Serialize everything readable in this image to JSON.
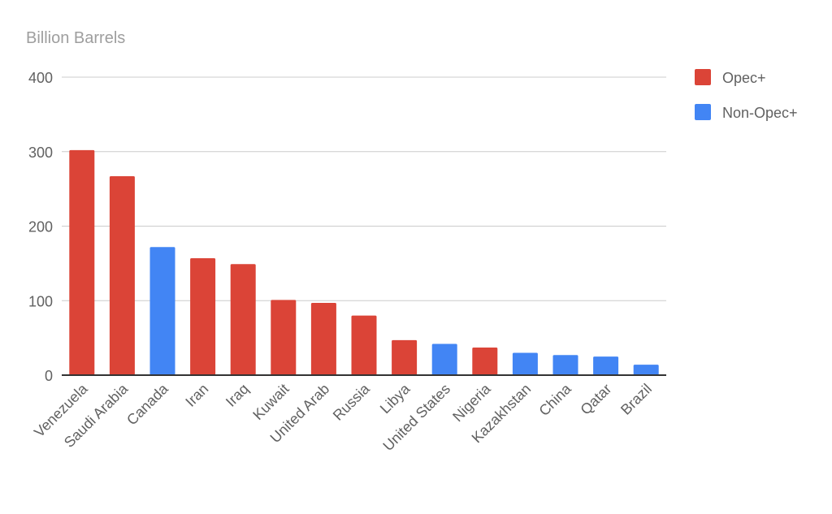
{
  "chart_data": {
    "type": "bar",
    "ylabel": "Billion Barrels",
    "ylim": [
      0,
      400
    ],
    "yticks": [
      0,
      100,
      200,
      300,
      400
    ],
    "grid": true,
    "legend_position": "right",
    "categories": [
      "Venezuela",
      "Saudi Arabia",
      "Canada",
      "Iran",
      "Iraq",
      "Kuwait",
      "United Arab",
      "Russia",
      "Libya",
      "United States",
      "Nigeria",
      "Kazakhstan",
      "China",
      "Qatar",
      "Brazil"
    ],
    "groups": [
      "Opec+",
      "Opec+",
      "Non-Opec+",
      "Opec+",
      "Opec+",
      "Opec+",
      "Opec+",
      "Opec+",
      "Opec+",
      "Non-Opec+",
      "Opec+",
      "Non-Opec+",
      "Non-Opec+",
      "Non-Opec+",
      "Non-Opec+"
    ],
    "values": [
      302,
      267,
      172,
      157,
      149,
      101,
      97,
      80,
      47,
      42,
      37,
      30,
      27,
      25,
      14
    ],
    "legend": [
      {
        "name": "Opec+",
        "color": "#db4437"
      },
      {
        "name": "Non-Opec+",
        "color": "#4285f4"
      }
    ]
  }
}
